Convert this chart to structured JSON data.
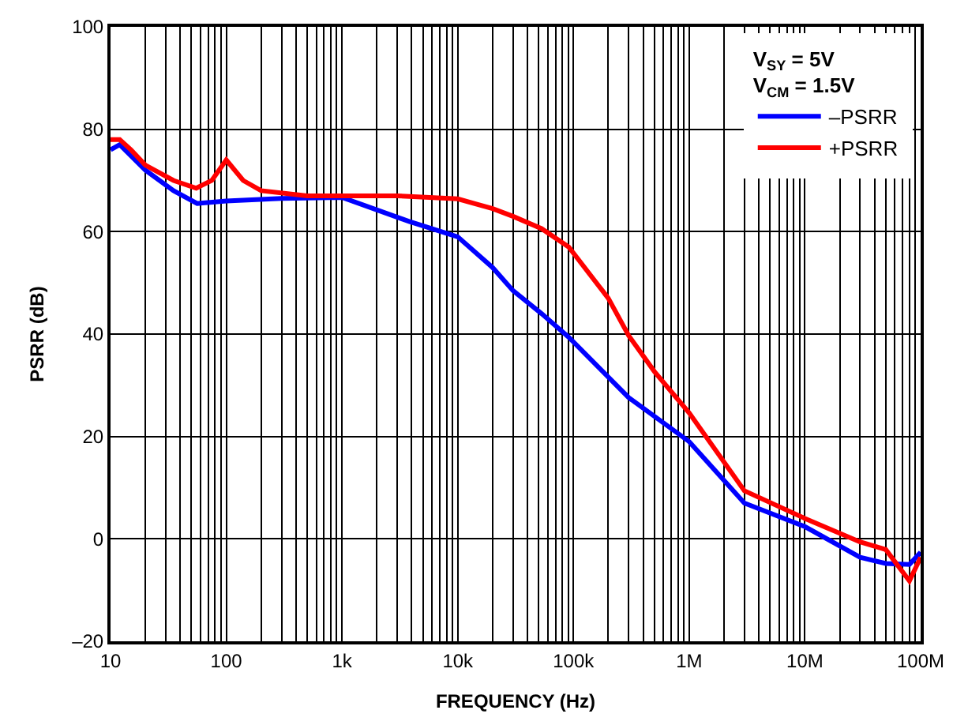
{
  "chart_data": {
    "type": "line",
    "xlabel": "FREQUENCY (Hz)",
    "ylabel": "PSRR (dB)",
    "legend_title": "V$_{SY}$ = 5V\nV$_{CM}$ = 1.5V",
    "legend": "top right",
    "log": "x",
    "grid": true,
    "line_style": "solid",
    "marker": "none",
    "xlim": [
      10,
      100000000
    ],
    "xticks": [
      10,
      100,
      {
        "value": 1000,
        "label": "1k"
      },
      {
        "value": 10000,
        "label": "10k"
      },
      {
        "value": 100000,
        "label": "100k"
      },
      {
        "value": 1000000,
        "label": "1M"
      },
      {
        "value": 10000000,
        "label": "10M"
      },
      {
        "value": 100000000,
        "label": "100M"
      }
    ],
    "ylim": [
      -20,
      100
    ],
    "yticks": [
      {
        "value": -20,
        "label": "–20"
      },
      0,
      20,
      40,
      60,
      80,
      100
    ],
    "series": [
      {
        "name": "–PSRR",
        "color": "#0000ff",
        "x": [
          10,
          12,
          20,
          35,
          56,
          100,
          300,
          1000,
          3800,
          10000,
          20000,
          30000,
          53000,
          91000,
          300000,
          1000000,
          3000000,
          10000000,
          30000000,
          50000000,
          80000000,
          100000000
        ],
        "values": [
          76,
          77,
          72,
          68,
          65.5,
          66,
          66.5,
          66.7,
          62,
          59,
          53,
          48.5,
          44,
          39.4,
          27.6,
          19,
          7,
          2.4,
          -3.6,
          -4.8,
          -5,
          -2.6
        ]
      },
      {
        "name": "+PSRR",
        "color": "#ff0000",
        "x": [
          10,
          12,
          15,
          20,
          35,
          55,
          75,
          100,
          140,
          200,
          500,
          1000,
          3000,
          10000,
          20000,
          30000,
          53000,
          91000,
          200000,
          300000,
          500000,
          1000000,
          3000000,
          10000000,
          30000000,
          50000000,
          80000000,
          100000000
        ],
        "values": [
          78,
          78,
          76,
          73,
          70,
          68.5,
          70,
          74,
          70,
          68,
          67,
          67,
          67,
          66.4,
          64.5,
          63,
          60.6,
          57,
          47,
          39.7,
          32.7,
          24.6,
          9.4,
          4,
          -0.6,
          -2.1,
          -8.2,
          -3.6
        ]
      }
    ]
  }
}
